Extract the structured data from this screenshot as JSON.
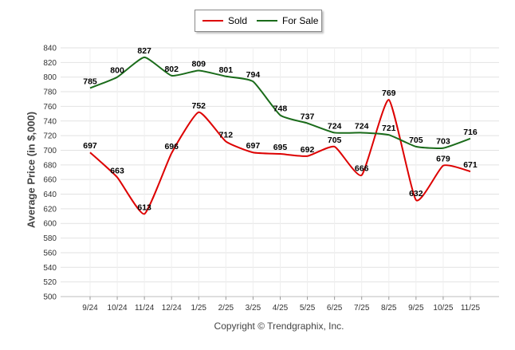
{
  "chart_data": {
    "type": "line",
    "categories": [
      "9/24",
      "10/24",
      "11/24",
      "12/24",
      "1/25",
      "2/25",
      "3/25",
      "4/25",
      "5/25",
      "6/25",
      "7/25",
      "8/25",
      "9/25",
      "10/25",
      "11/25"
    ],
    "series": [
      {
        "name": "Sold",
        "color": "#dd0000",
        "values": [
          697,
          663,
          613,
          696,
          752,
          712,
          697,
          695,
          692,
          705,
          666,
          769,
          632,
          679,
          671
        ]
      },
      {
        "name": "For Sale",
        "color": "#1a6b1a",
        "values": [
          785,
          800,
          827,
          802,
          809,
          801,
          794,
          748,
          737,
          724,
          724,
          721,
          705,
          703,
          716
        ]
      }
    ],
    "title": "",
    "xlabel": "",
    "ylabel": "Average Price (in $,000)",
    "ylim": [
      500,
      840
    ],
    "ytick_step": 20,
    "grid": true,
    "legend": "top-center"
  },
  "legend": {
    "sold": "Sold",
    "for_sale": "For Sale"
  },
  "footer": {
    "copyright": "Copyright © Trendgraphix, Inc."
  }
}
